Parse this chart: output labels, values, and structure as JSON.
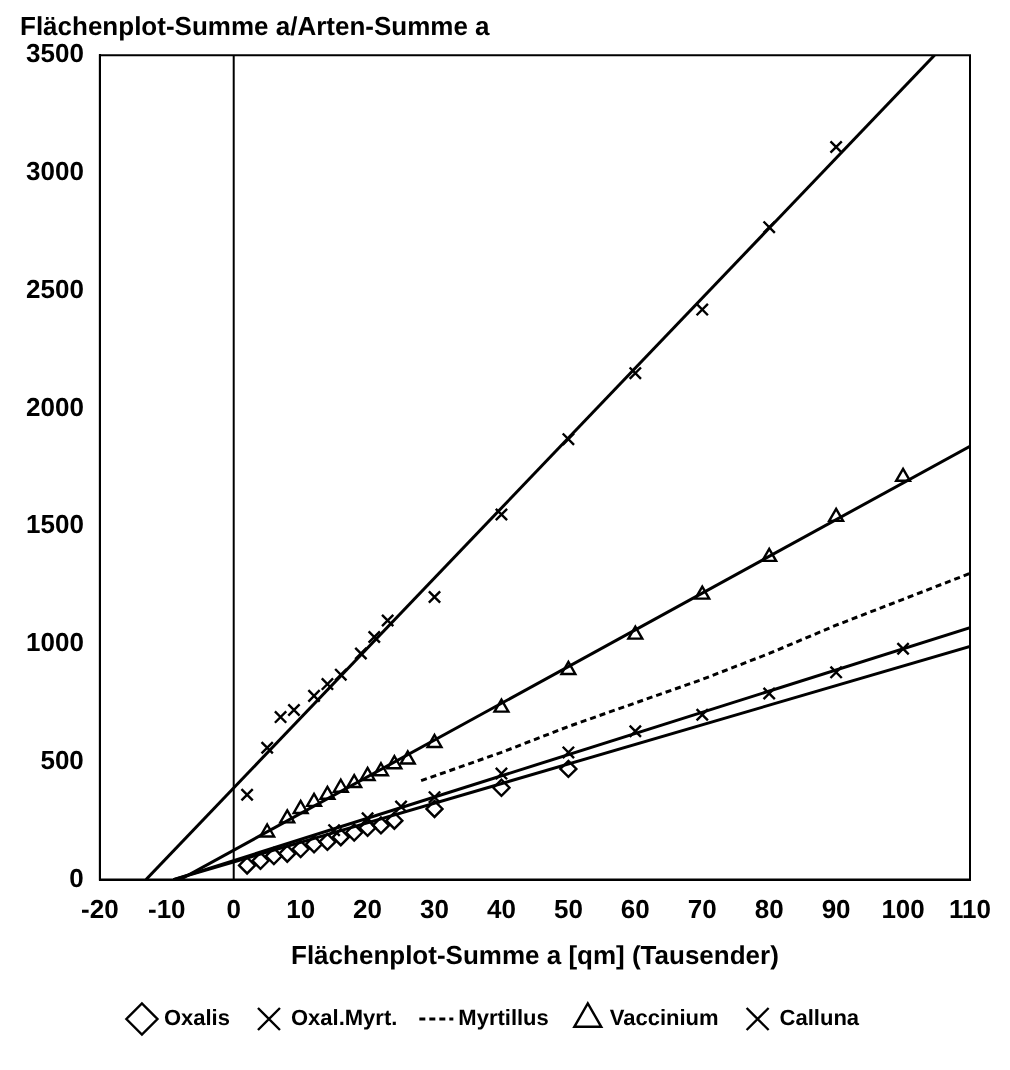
{
  "chart_data": {
    "type": "scatter",
    "title": "Flächenplot-Summe a/Arten-Summe a",
    "xlabel": "Flächenplot-Summe a [qm] (Tausender)",
    "xlim": [
      -20,
      110
    ],
    "xticks": [
      -20,
      -10,
      0,
      10,
      20,
      30,
      40,
      50,
      60,
      70,
      80,
      90,
      100,
      110
    ],
    "ylim": [
      0,
      3500
    ],
    "yticks": [
      0,
      500,
      1000,
      1500,
      2000,
      2500,
      3000,
      3500
    ],
    "grid": false,
    "legend": "bottom",
    "ref_lines": [
      {
        "axis": "x",
        "value": 0
      }
    ],
    "series": [
      {
        "name": "Oxalis",
        "color": "#000000",
        "marker": "diamond",
        "x": [
          2,
          4,
          6,
          8,
          10,
          12,
          14,
          16,
          18,
          20,
          22,
          24,
          30,
          40,
          50
        ],
        "values": [
          60,
          80,
          100,
          110,
          130,
          150,
          160,
          180,
          200,
          220,
          230,
          250,
          300,
          390,
          470
        ]
      },
      {
        "name": "Oxal.Myrt.",
        "color": "#000000",
        "marker": "cross",
        "x": [
          15,
          20,
          25,
          30,
          40,
          50,
          60,
          70,
          80,
          90,
          100
        ],
        "values": [
          210,
          260,
          310,
          350,
          450,
          540,
          630,
          700,
          790,
          880,
          980
        ]
      },
      {
        "name": "Myrtillus",
        "type": "line",
        "color": "#000000",
        "marker": "none",
        "line_style": "dashed",
        "x": [
          28,
          40,
          50,
          60,
          70,
          80,
          90,
          100,
          110
        ],
        "values": [
          420,
          540,
          650,
          750,
          850,
          960,
          1080,
          1190,
          1300
        ]
      },
      {
        "name": "Vaccinium",
        "color": "#000000",
        "marker": "triangle",
        "x": [
          5,
          8,
          10,
          12,
          14,
          16,
          18,
          20,
          22,
          24,
          26,
          30,
          40,
          50,
          60,
          70,
          80,
          90,
          100
        ],
        "values": [
          200,
          260,
          300,
          330,
          360,
          390,
          410,
          440,
          460,
          490,
          510,
          580,
          730,
          890,
          1040,
          1210,
          1370,
          1540,
          1710
        ]
      },
      {
        "name": "Calluna",
        "color": "#000000",
        "marker": "cross",
        "x": [
          2,
          5,
          7,
          9,
          12,
          14,
          16,
          19,
          21,
          23,
          30,
          40,
          50,
          60,
          70,
          80,
          90
        ],
        "values": [
          360,
          560,
          690,
          720,
          780,
          830,
          870,
          960,
          1030,
          1100,
          1200,
          1550,
          1870,
          2150,
          2420,
          2770,
          3110
        ]
      },
      {
        "type": "line",
        "color": "#000000",
        "marker": "none",
        "x": [
          -9,
          110
        ],
        "values": [
          0,
          990
        ]
      },
      {
        "type": "line",
        "color": "#000000",
        "marker": "none",
        "x": [
          -9,
          110
        ],
        "values": [
          0,
          1070
        ]
      },
      {
        "type": "line",
        "color": "#000000",
        "marker": "none",
        "x": [
          -8,
          110
        ],
        "values": [
          0,
          1840
        ]
      },
      {
        "type": "line",
        "color": "#000000",
        "marker": "none",
        "x": [
          -13.1,
          104.7
        ],
        "values": [
          0,
          3500
        ]
      }
    ]
  }
}
